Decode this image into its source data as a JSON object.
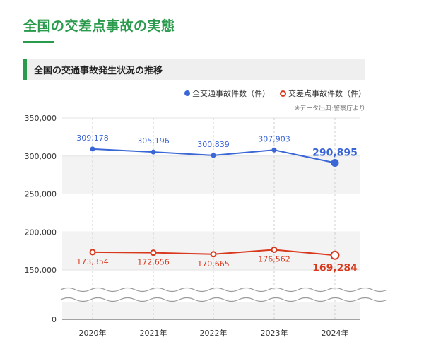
{
  "page": {
    "title": "全国の交差点事故の実態",
    "section_title": "全国の交通事故発生状況の推移",
    "source_note": "※データ出典:警察庁より"
  },
  "colors": {
    "accent": "#2a9a4c",
    "series_total": "#3a66d6",
    "series_intersection": "#d8381c"
  },
  "chart_data": {
    "type": "line",
    "x": [
      "2020年",
      "2021年",
      "2022年",
      "2023年",
      "2024年"
    ],
    "series": [
      {
        "name": "全交通事故件数（件）",
        "values": [
          309178,
          305196,
          300839,
          307903,
          290895
        ],
        "labels": [
          "309,178",
          "305,196",
          "300,839",
          "307,903",
          "290,895"
        ]
      },
      {
        "name": "交差点事故件数（件）",
        "values": [
          173354,
          172656,
          170665,
          176562,
          169284
        ],
        "labels": [
          "173,354",
          "172,656",
          "170,665",
          "176,562",
          "169,284"
        ]
      }
    ],
    "yticks": [
      "350,000",
      "300,000",
      "250,000",
      "200,000",
      "150,000",
      "0"
    ],
    "ylim": [
      150000,
      350000
    ],
    "axis_break": true,
    "grid": true,
    "legend": "top-right"
  }
}
